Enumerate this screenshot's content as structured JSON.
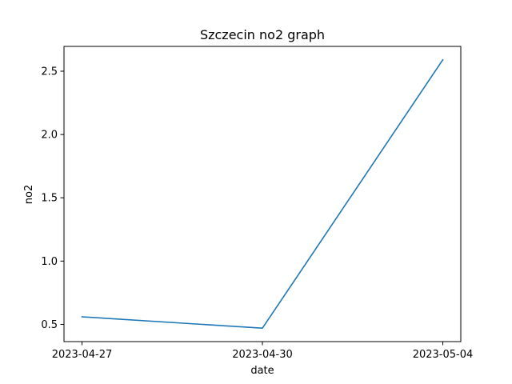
{
  "chart_data": {
    "type": "line",
    "title": "Szczecin no2 graph",
    "xlabel": "date",
    "ylabel": "no2",
    "categories": [
      "2023-04-27",
      "2023-04-30",
      "2023-05-04"
    ],
    "series": [
      {
        "values": [
          0.56,
          0.47,
          2.59
        ],
        "color": "#1f77b4"
      }
    ],
    "ylim": [
      0.364,
      2.696
    ],
    "yticks": [
      "0.5",
      "1.0",
      "1.5",
      "2.0",
      "2.5"
    ],
    "grid": false,
    "legend": "none"
  }
}
